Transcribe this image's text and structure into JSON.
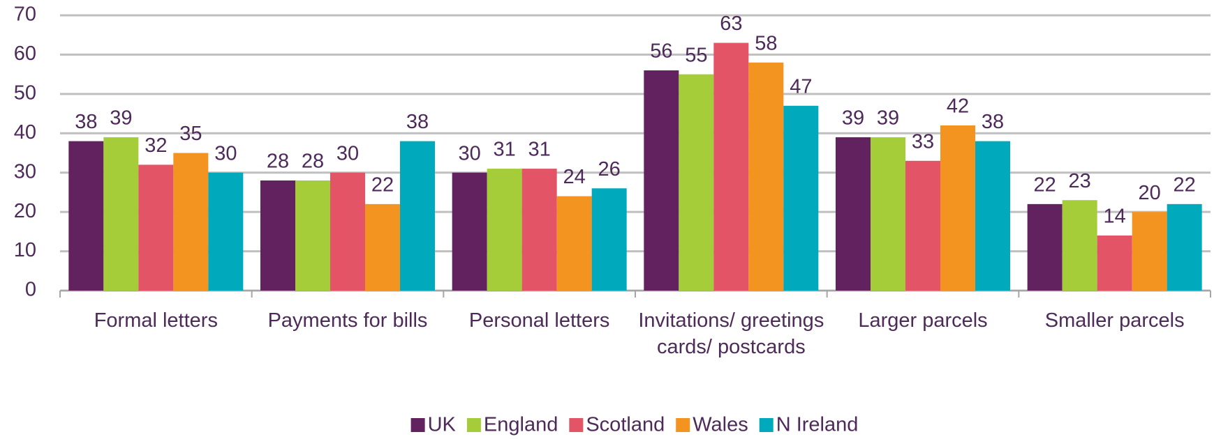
{
  "chart_data": {
    "type": "bar",
    "categories": [
      "Formal letters",
      "Payments for bills",
      "Personal letters",
      "Invitations/ greetings cards/ postcards",
      "Larger parcels",
      "Smaller parcels"
    ],
    "series": [
      {
        "name": "UK",
        "color": "#62215f",
        "values": [
          38,
          28,
          30,
          56,
          39,
          22
        ]
      },
      {
        "name": "England",
        "color": "#a5cd39",
        "values": [
          39,
          28,
          31,
          55,
          39,
          23
        ]
      },
      {
        "name": "Scotland",
        "color": "#e35466",
        "values": [
          32,
          30,
          31,
          63,
          33,
          14
        ]
      },
      {
        "name": "Wales",
        "color": "#f39320",
        "values": [
          35,
          22,
          24,
          58,
          42,
          20
        ]
      },
      {
        "name": "N Ireland",
        "color": "#00a9bb",
        "values": [
          30,
          38,
          26,
          47,
          38,
          22
        ]
      }
    ],
    "ylim": [
      0,
      70
    ],
    "yticks": [
      0,
      10,
      20,
      30,
      40,
      50,
      60,
      70
    ],
    "grid": true,
    "legend": "bottom"
  }
}
